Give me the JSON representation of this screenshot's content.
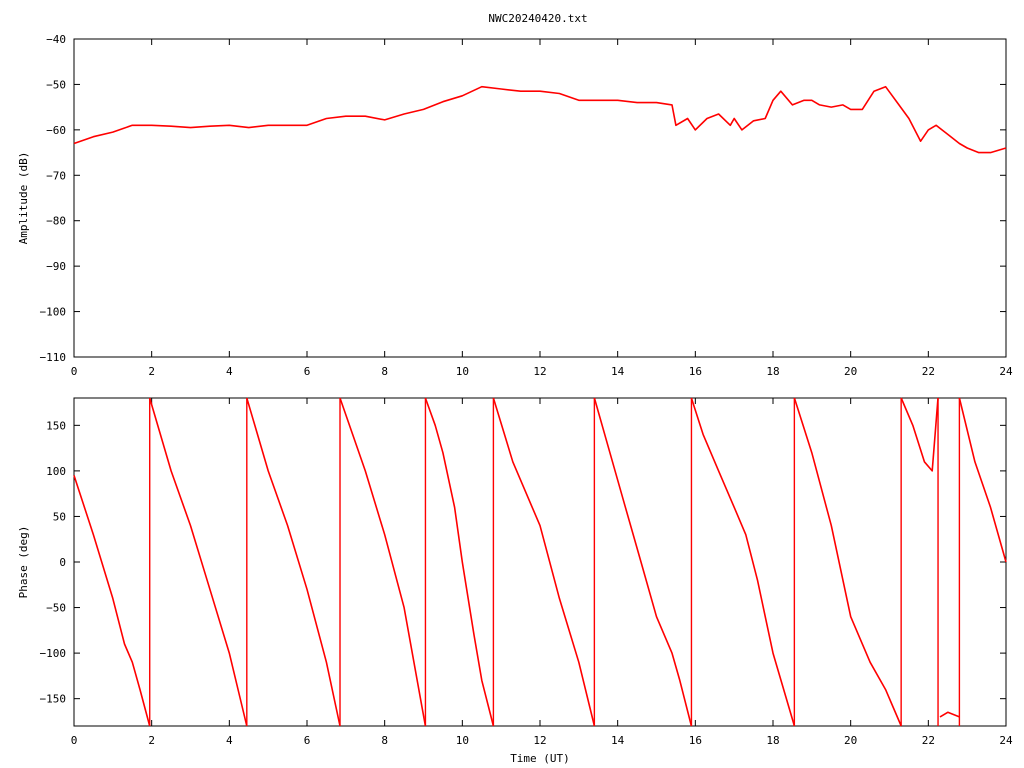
{
  "title": "NWC20240420.txt",
  "colors": {
    "series": "#ff0000",
    "axis": "#000000",
    "grid": "#000000",
    "background": "#ffffff"
  },
  "chart_data": [
    {
      "type": "line",
      "panel": "top",
      "title": "NWC20240420.txt",
      "xlabel": "",
      "ylabel": "Amplitude (dB)",
      "xlim": [
        0,
        24
      ],
      "ylim": [
        -110,
        -40
      ],
      "xticks": [
        0,
        2,
        4,
        6,
        8,
        10,
        12,
        14,
        16,
        18,
        20,
        22,
        24
      ],
      "yticks": [
        -110,
        -100,
        -90,
        -80,
        -70,
        -60,
        -50,
        -40
      ],
      "grid": false,
      "series": [
        {
          "color": "#ff0000",
          "x": [
            0,
            0.5,
            1.0,
            1.5,
            2.0,
            2.5,
            3.0,
            3.5,
            4.0,
            4.5,
            5.0,
            5.5,
            6.0,
            6.5,
            7.0,
            7.5,
            8.0,
            8.5,
            9.0,
            9.5,
            10.0,
            10.5,
            11.0,
            11.5,
            12.0,
            12.5,
            13.0,
            13.5,
            14.0,
            14.5,
            15.0,
            15.4,
            15.5,
            15.8,
            16.0,
            16.3,
            16.6,
            16.9,
            17.0,
            17.2,
            17.5,
            17.8,
            18.0,
            18.2,
            18.5,
            18.8,
            19.0,
            19.2,
            19.5,
            19.8,
            20.0,
            20.3,
            20.6,
            20.9,
            21.2,
            21.5,
            21.8,
            22.0,
            22.2,
            22.5,
            22.8,
            23.0,
            23.3,
            23.6,
            24.0
          ],
          "y": [
            -63,
            -61.5,
            -60.5,
            -59,
            -59,
            -59.2,
            -59.5,
            -59.2,
            -59,
            -59.5,
            -59,
            -59,
            -59,
            -57.5,
            -57,
            -57,
            -57.8,
            -56.5,
            -55.5,
            -53.8,
            -52.5,
            -50.5,
            -51,
            -51.5,
            -51.5,
            -52,
            -53.5,
            -53.5,
            -53.5,
            -54,
            -54,
            -54.5,
            -59,
            -57.5,
            -60,
            -57.5,
            -56.5,
            -59,
            -57.5,
            -60,
            -58,
            -57.5,
            -53.5,
            -51.5,
            -54.5,
            -53.5,
            -53.5,
            -54.5,
            -55,
            -54.5,
            -55.5,
            -55.5,
            -51.5,
            -50.5,
            -54,
            -57.5,
            -62.5,
            -60,
            -59,
            -61,
            -63,
            -64,
            -65,
            -65,
            -64
          ]
        }
      ]
    },
    {
      "type": "line",
      "panel": "bottom",
      "title": "",
      "xlabel": "Time (UT)",
      "ylabel": "Phase (deg)",
      "xlim": [
        0,
        24
      ],
      "ylim": [
        -180,
        180
      ],
      "xticks": [
        0,
        2,
        4,
        6,
        8,
        10,
        12,
        14,
        16,
        18,
        20,
        22,
        24
      ],
      "yticks": [
        -150,
        -100,
        -50,
        0,
        50,
        100,
        150
      ],
      "grid": false,
      "series": [
        {
          "color": "#ff0000",
          "segments": [
            {
              "x": [
                0,
                0.5,
                1.0,
                1.3,
                1.5,
                1.7,
                1.95
              ],
              "y": [
                95,
                30,
                -40,
                -90,
                -110,
                -140,
                -180
              ]
            },
            {
              "x": [
                1.95,
                2.5,
                3.0,
                3.5,
                4.0,
                4.45
              ],
              "y": [
                180,
                100,
                40,
                -30,
                -100,
                -180
              ]
            },
            {
              "x": [
                4.45,
                5.0,
                5.5,
                6.0,
                6.5,
                6.85
              ],
              "y": [
                180,
                100,
                40,
                -30,
                -110,
                -180
              ]
            },
            {
              "x": [
                6.85,
                7.5,
                8.0,
                8.5,
                9.05
              ],
              "y": [
                180,
                100,
                30,
                -50,
                -180
              ]
            },
            {
              "x": [
                9.05,
                9.3,
                9.5,
                9.8,
                10.0,
                10.3,
                10.5,
                10.8
              ],
              "y": [
                180,
                150,
                120,
                60,
                0,
                -80,
                -130,
                -180
              ]
            },
            {
              "x": [
                10.8,
                11.3,
                12.0,
                12.5,
                13.0,
                13.4
              ],
              "y": [
                180,
                110,
                40,
                -40,
                -110,
                -180
              ]
            },
            {
              "x": [
                13.4,
                13.8,
                14.2,
                14.6,
                15.0,
                15.4,
                15.6,
                15.9
              ],
              "y": [
                180,
                120,
                60,
                0,
                -60,
                -100,
                -130,
                -180
              ]
            },
            {
              "x": [
                15.9,
                16.2,
                16.6,
                17.0,
                17.3,
                17.6,
                18.0,
                18.55
              ],
              "y": [
                180,
                140,
                100,
                60,
                30,
                -20,
                -100,
                -180
              ]
            },
            {
              "x": [
                18.55,
                19.0,
                19.5,
                20.0,
                20.5,
                20.9,
                21.3
              ],
              "y": [
                180,
                120,
                40,
                -60,
                -110,
                -140,
                -180
              ]
            },
            {
              "x": [
                21.3,
                21.6,
                21.9,
                22.1,
                22.25
              ],
              "y": [
                180,
                150,
                110,
                100,
                180
              ]
            },
            {
              "x": [
                22.3,
                22.5,
                22.8
              ],
              "y": [
                -170,
                -165,
                -170
              ]
            },
            {
              "x": [
                22.8,
                23.2,
                23.6,
                24.0
              ],
              "y": [
                180,
                110,
                60,
                0
              ]
            }
          ]
        }
      ]
    }
  ]
}
